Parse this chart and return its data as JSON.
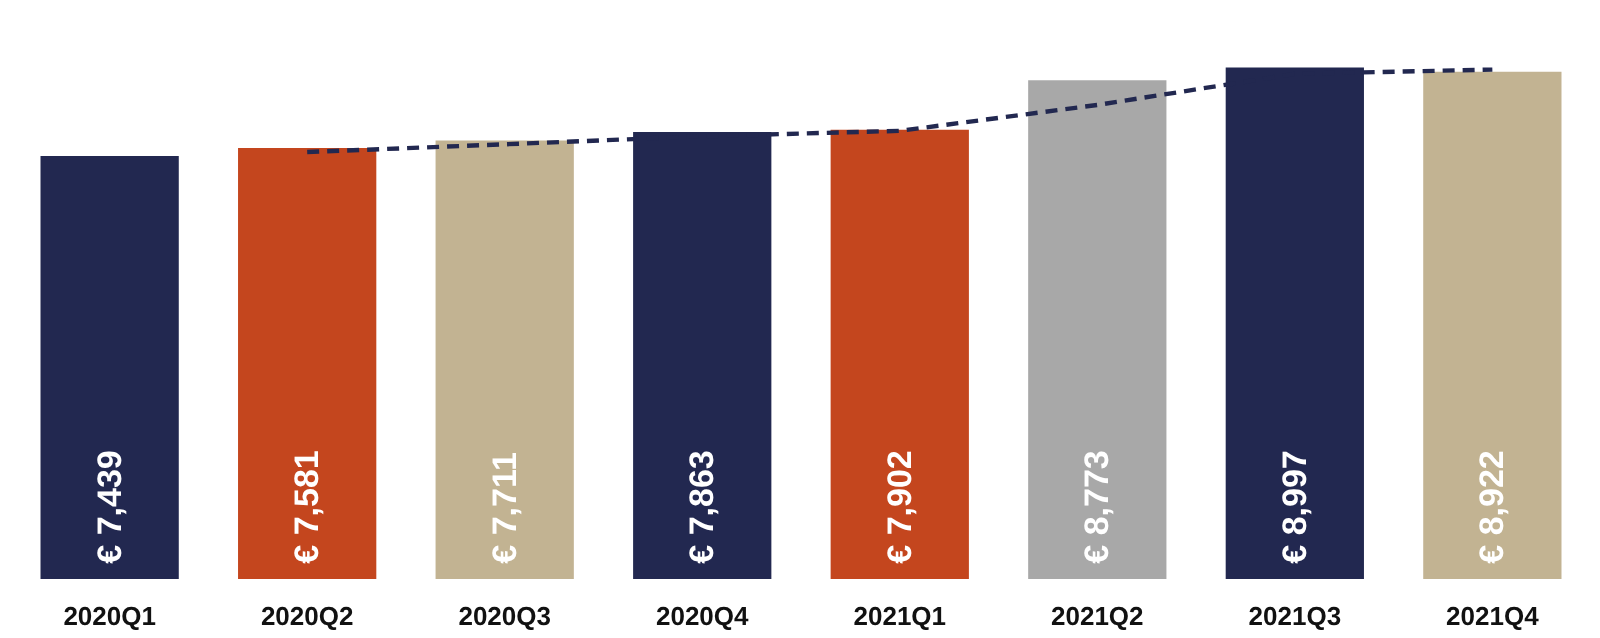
{
  "chart_data": {
    "type": "bar",
    "categories": [
      "2020Q1",
      "2020Q2",
      "2020Q3",
      "2020Q4",
      "2021Q1",
      "2021Q2",
      "2021Q3",
      "2021Q4"
    ],
    "series": [
      {
        "values": [
          7439,
          7581,
          7711,
          7863,
          7902,
          8773,
          8997,
          8922
        ],
        "colors": [
          "#222850",
          "#c4461e",
          "#c2b392",
          "#222850",
          "#c4461e",
          "#a8a8a8",
          "#222850",
          "#c2b392"
        ],
        "value_labels": [
          "€ 7,439",
          "€ 7,581",
          "€ 7,711",
          "€ 7,863",
          "€ 7,902",
          "€ 8,773",
          "€ 8,997",
          "€ 8,922"
        ]
      },
      {
        "type": "line",
        "x": [
          "2020Q2",
          "2020Q3",
          "2020Q4",
          "2021Q1",
          "2021Q2",
          "2021Q3",
          "2021Q4"
        ],
        "values": [
          7510,
          7646,
          7787,
          7883,
          8338,
          8885,
          8960
        ],
        "color": "#222850",
        "line_style": "dashed",
        "marker": "none"
      }
    ],
    "grid": false
  }
}
